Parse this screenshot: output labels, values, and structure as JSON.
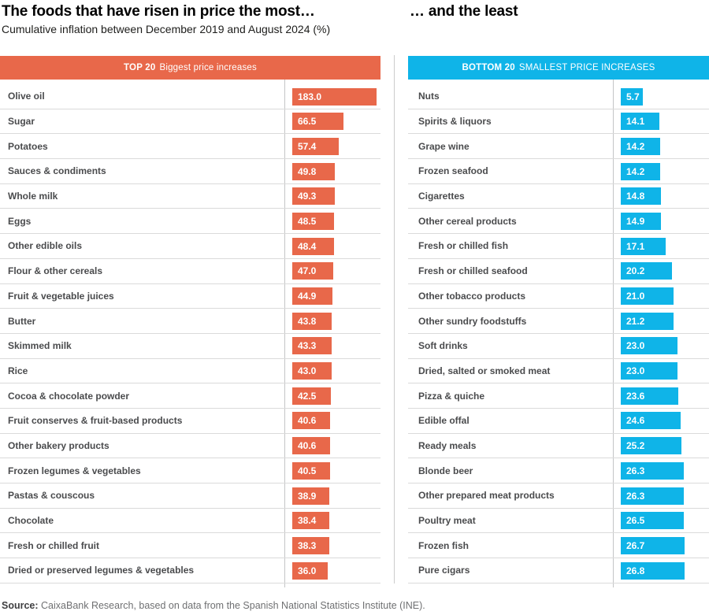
{
  "title_left": "The foods that have risen in price the most…",
  "title_right": "… and the least",
  "subtitle": "Cumulative inflation between December 2019 and August 2024 (%)",
  "source": {
    "label": "Source:",
    "text": " CaixaBank Research, based on data from the Spanish National Statistics Institute (INE)."
  },
  "chart_data": [
    {
      "type": "bar",
      "orientation": "horizontal",
      "title": "TOP 20 Biggest price increases",
      "header_strong": "TOP 20",
      "header_rest": "Biggest price increases",
      "bar_color": "#E8684A",
      "value_label_color": "#ffffff",
      "unit": "%",
      "categories": [
        "Olive oil",
        "Sugar",
        "Potatoes",
        "Sauces & condiments",
        "Whole milk",
        "Eggs",
        "Other edible oils",
        "Flour & other cereals",
        "Fruit & vegetable juices",
        "Butter",
        "Skimmed milk",
        "Rice",
        "Cocoa & chocolate powder",
        "Fruit conserves & fruit-based products",
        "Other bakery products",
        "Frozen legumes & vegetables",
        "Pastas & couscous",
        "Chocolate",
        "Fresh or chilled fruit",
        "Dried or preserved legumes & vegetables"
      ],
      "values": [
        183.0,
        66.5,
        57.4,
        49.8,
        49.3,
        48.5,
        48.4,
        47.0,
        44.9,
        43.8,
        43.3,
        43.0,
        42.5,
        40.6,
        40.6,
        40.5,
        38.9,
        38.4,
        38.3,
        36.0
      ]
    },
    {
      "type": "bar",
      "orientation": "horizontal",
      "title": "BOTTOM 20 SMALLEST PRICE INCREASES",
      "header_strong": "BOTTOM 20",
      "header_rest": "SMALLEST PRICE INCREASES",
      "bar_color": "#0FB4E8",
      "value_label_color": "#ffffff",
      "unit": "%",
      "categories": [
        "Nuts",
        "Spirits & liquors",
        "Grape wine",
        "Frozen seafood",
        "Cigarettes",
        "Other cereal products",
        "Fresh or chilled fish",
        "Fresh or chilled seafood",
        "Other tobacco products",
        "Other sundry foodstuffs",
        "Soft drinks",
        "Dried, salted or smoked meat",
        "Pizza & quiche",
        "Edible offal",
        "Ready meals",
        "Blonde beer",
        "Other prepared meat products",
        "Poultry meat",
        "Frozen fish",
        "Pure cigars"
      ],
      "values": [
        5.7,
        14.1,
        14.2,
        14.2,
        14.8,
        14.9,
        17.1,
        20.2,
        21.0,
        21.2,
        23.0,
        23.0,
        23.6,
        24.6,
        25.2,
        26.3,
        26.3,
        26.5,
        26.7,
        26.8
      ]
    }
  ]
}
